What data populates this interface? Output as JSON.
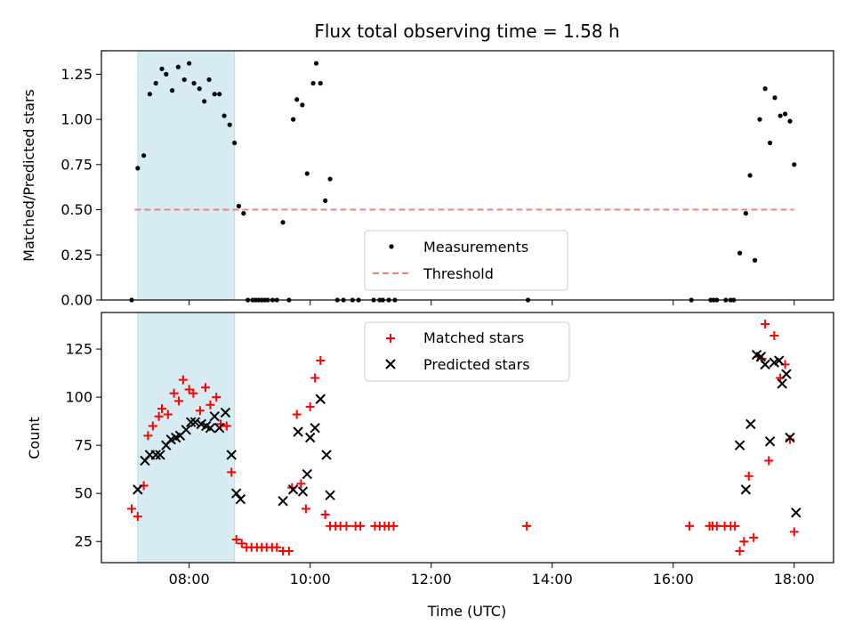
{
  "chart_data": [
    {
      "type": "scatter",
      "title": "Flux total observing time = 1.58 h",
      "ylabel": "Matched/Predicted stars",
      "xlabel": "",
      "xlim": [
        6.55,
        18.65
      ],
      "ylim": [
        0,
        1.38
      ],
      "yticks": [
        0,
        0.25,
        0.5,
        0.75,
        1.0,
        1.25
      ],
      "ytick_labels": [
        "0.00",
        "0.25",
        "0.50",
        "0.75",
        "1.00",
        "1.25"
      ],
      "xticks": [
        8,
        10,
        12,
        14,
        16,
        18
      ],
      "shaded_region": {
        "x0": 7.15,
        "x1": 8.75,
        "color": "#add8e6"
      },
      "threshold": {
        "name": "Threshold",
        "value": 0.5,
        "x0": 7.1,
        "x1": 18.0,
        "color": "#f08080"
      },
      "legend": {
        "placement": "lower-center",
        "entries": [
          "Measurements",
          "Threshold"
        ]
      },
      "series": [
        {
          "name": "Measurements",
          "marker": "dot",
          "color": "#000000",
          "points": [
            [
              7.05,
              0.0
            ],
            [
              7.15,
              0.73
            ],
            [
              7.25,
              0.8
            ],
            [
              7.35,
              1.14
            ],
            [
              7.45,
              1.2
            ],
            [
              7.55,
              1.28
            ],
            [
              7.62,
              1.25
            ],
            [
              7.72,
              1.16
            ],
            [
              7.82,
              1.29
            ],
            [
              7.92,
              1.22
            ],
            [
              8.0,
              1.31
            ],
            [
              8.08,
              1.2
            ],
            [
              8.17,
              1.17
            ],
            [
              8.25,
              1.1
            ],
            [
              8.33,
              1.22
            ],
            [
              8.42,
              1.14
            ],
            [
              8.5,
              1.14
            ],
            [
              8.58,
              1.02
            ],
            [
              8.67,
              0.97
            ],
            [
              8.75,
              0.87
            ],
            [
              8.82,
              0.52
            ],
            [
              8.9,
              0.48
            ],
            [
              8.97,
              0.0
            ],
            [
              9.05,
              0.0
            ],
            [
              9.1,
              0.0
            ],
            [
              9.15,
              0.0
            ],
            [
              9.2,
              0.0
            ],
            [
              9.25,
              0.0
            ],
            [
              9.3,
              0.0
            ],
            [
              9.38,
              0.0
            ],
            [
              9.45,
              0.0
            ],
            [
              9.55,
              0.43
            ],
            [
              9.65,
              0.0
            ],
            [
              9.72,
              1.0
            ],
            [
              9.78,
              1.11
            ],
            [
              9.87,
              1.08
            ],
            [
              9.95,
              0.7
            ],
            [
              10.05,
              1.2
            ],
            [
              10.1,
              1.31
            ],
            [
              10.17,
              1.2
            ],
            [
              10.25,
              0.55
            ],
            [
              10.33,
              0.67
            ],
            [
              10.45,
              0.0
            ],
            [
              10.55,
              0.0
            ],
            [
              10.7,
              0.0
            ],
            [
              10.8,
              0.0
            ],
            [
              11.05,
              0.0
            ],
            [
              11.15,
              0.0
            ],
            [
              11.2,
              0.0
            ],
            [
              11.3,
              0.0
            ],
            [
              11.4,
              0.0
            ],
            [
              13.6,
              0.0
            ],
            [
              16.3,
              0.0
            ],
            [
              16.62,
              0.0
            ],
            [
              16.67,
              0.0
            ],
            [
              16.72,
              0.0
            ],
            [
              16.87,
              0.0
            ],
            [
              16.95,
              0.0
            ],
            [
              17.0,
              0.0
            ],
            [
              17.1,
              0.26
            ],
            [
              17.2,
              0.48
            ],
            [
              17.27,
              0.69
            ],
            [
              17.35,
              0.22
            ],
            [
              17.43,
              1.0
            ],
            [
              17.52,
              1.17
            ],
            [
              17.6,
              0.87
            ],
            [
              17.68,
              1.12
            ],
            [
              17.77,
              1.02
            ],
            [
              17.85,
              1.03
            ],
            [
              17.93,
              0.99
            ],
            [
              18.0,
              0.75
            ]
          ]
        }
      ]
    },
    {
      "type": "scatter",
      "title": "",
      "xlabel": "Time (UTC)",
      "ylabel": "Count",
      "xlim": [
        6.55,
        18.65
      ],
      "ylim": [
        14,
        144
      ],
      "yticks": [
        25,
        50,
        75,
        100,
        125
      ],
      "ytick_labels": [
        "25",
        "50",
        "75",
        "100",
        "125"
      ],
      "xticks": [
        8,
        10,
        12,
        14,
        16,
        18
      ],
      "xtick_labels": [
        "08:00",
        "10:00",
        "12:00",
        "14:00",
        "16:00",
        "18:00"
      ],
      "shaded_region": {
        "x0": 7.15,
        "x1": 8.75,
        "color": "#add8e6"
      },
      "legend": {
        "placement": "upper-center",
        "entries": [
          "Matched stars",
          "Predicted stars"
        ]
      },
      "series": [
        {
          "name": "Matched stars",
          "marker": "plus",
          "color": "#ff0000",
          "points": [
            [
              7.05,
              42
            ],
            [
              7.15,
              38
            ],
            [
              7.25,
              54
            ],
            [
              7.32,
              80
            ],
            [
              7.4,
              85
            ],
            [
              7.5,
              90
            ],
            [
              7.55,
              94
            ],
            [
              7.65,
              91
            ],
            [
              7.75,
              102
            ],
            [
              7.83,
              98
            ],
            [
              7.9,
              109
            ],
            [
              8.0,
              104
            ],
            [
              8.07,
              102
            ],
            [
              8.18,
              93
            ],
            [
              8.27,
              105
            ],
            [
              8.35,
              96
            ],
            [
              8.45,
              100
            ],
            [
              8.52,
              86
            ],
            [
              8.62,
              85
            ],
            [
              8.7,
              61
            ],
            [
              8.78,
              26
            ],
            [
              8.87,
              24
            ],
            [
              8.95,
              22
            ],
            [
              9.03,
              22
            ],
            [
              9.12,
              22
            ],
            [
              9.2,
              22
            ],
            [
              9.28,
              22
            ],
            [
              9.37,
              22
            ],
            [
              9.45,
              22
            ],
            [
              9.55,
              20
            ],
            [
              9.65,
              20
            ],
            [
              9.7,
              53
            ],
            [
              9.78,
              91
            ],
            [
              9.85,
              55
            ],
            [
              9.93,
              42
            ],
            [
              10.0,
              95
            ],
            [
              10.08,
              110
            ],
            [
              10.17,
              119
            ],
            [
              10.25,
              39
            ],
            [
              10.33,
              33
            ],
            [
              10.42,
              33
            ],
            [
              10.5,
              33
            ],
            [
              10.6,
              33
            ],
            [
              10.75,
              33
            ],
            [
              10.83,
              33
            ],
            [
              11.07,
              33
            ],
            [
              11.15,
              33
            ],
            [
              11.23,
              33
            ],
            [
              11.3,
              33
            ],
            [
              11.38,
              33
            ],
            [
              13.58,
              33
            ],
            [
              16.27,
              33
            ],
            [
              16.6,
              33
            ],
            [
              16.65,
              33
            ],
            [
              16.72,
              33
            ],
            [
              16.85,
              33
            ],
            [
              16.95,
              33
            ],
            [
              17.02,
              33
            ],
            [
              17.1,
              20
            ],
            [
              17.17,
              25
            ],
            [
              17.25,
              59
            ],
            [
              17.33,
              27
            ],
            [
              17.4,
              121
            ],
            [
              17.47,
              120
            ],
            [
              17.52,
              138
            ],
            [
              17.58,
              67
            ],
            [
              17.67,
              132
            ],
            [
              17.77,
              110
            ],
            [
              17.85,
              117
            ],
            [
              17.93,
              78
            ],
            [
              18.0,
              30
            ]
          ]
        },
        {
          "name": "Predicted stars",
          "marker": "x",
          "color": "#000000",
          "points": [
            [
              7.15,
              52
            ],
            [
              7.27,
              67
            ],
            [
              7.35,
              70
            ],
            [
              7.45,
              70
            ],
            [
              7.52,
              70
            ],
            [
              7.62,
              75
            ],
            [
              7.7,
              78
            ],
            [
              7.78,
              79
            ],
            [
              7.85,
              80
            ],
            [
              7.95,
              83
            ],
            [
              8.03,
              87
            ],
            [
              8.1,
              87
            ],
            [
              8.2,
              86
            ],
            [
              8.28,
              85
            ],
            [
              8.35,
              84
            ],
            [
              8.42,
              90
            ],
            [
              8.5,
              84
            ],
            [
              8.6,
              92
            ],
            [
              8.7,
              70
            ],
            [
              8.78,
              50
            ],
            [
              8.85,
              47
            ],
            [
              9.55,
              46
            ],
            [
              9.72,
              52
            ],
            [
              9.8,
              82
            ],
            [
              9.88,
              51
            ],
            [
              9.95,
              60
            ],
            [
              10.0,
              79
            ],
            [
              10.08,
              84
            ],
            [
              10.17,
              99
            ],
            [
              10.27,
              70
            ],
            [
              10.33,
              49
            ],
            [
              17.1,
              75
            ],
            [
              17.2,
              52
            ],
            [
              17.28,
              86
            ],
            [
              17.38,
              122
            ],
            [
              17.45,
              121
            ],
            [
              17.52,
              117
            ],
            [
              17.6,
              77
            ],
            [
              17.67,
              118
            ],
            [
              17.75,
              119
            ],
            [
              17.8,
              107
            ],
            [
              17.87,
              112
            ],
            [
              17.93,
              79
            ],
            [
              18.03,
              40
            ]
          ]
        }
      ]
    }
  ]
}
